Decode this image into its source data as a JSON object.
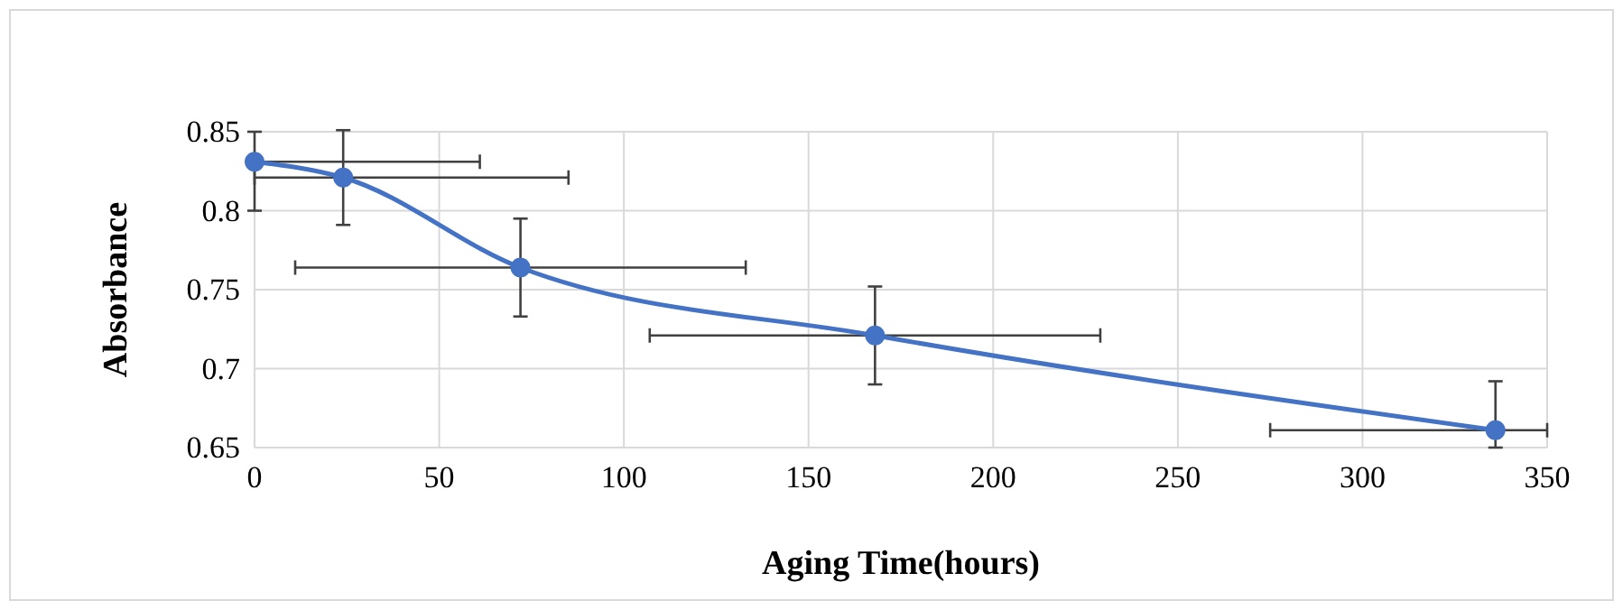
{
  "chart_data": {
    "type": "line",
    "xlabel": "Aging Time(hours)",
    "ylabel": "Absorbance",
    "x": [
      0,
      24,
      72,
      168,
      336
    ],
    "values": [
      0.831,
      0.821,
      0.764,
      0.721,
      0.661
    ],
    "errors": [
      [
        0.8,
        0.85
      ],
      0.03,
      0.031,
      0.031,
      [
        0.65,
        0.692
      ]
    ],
    "xerrors": [
      [
        0,
        61
      ],
      [
        0,
        85
      ],
      61,
      61,
      [
        275,
        350
      ]
    ],
    "color": "#4472c4",
    "marker": "circle",
    "line_style": "solid",
    "xlim": [
      0,
      350
    ],
    "xticks": [
      0,
      50,
      100,
      150,
      200,
      250,
      300,
      350
    ],
    "ylim": [
      0.65,
      0.85
    ],
    "yticks": [
      0.65,
      0.7,
      0.75,
      0.8,
      0.85
    ],
    "grid": true
  }
}
